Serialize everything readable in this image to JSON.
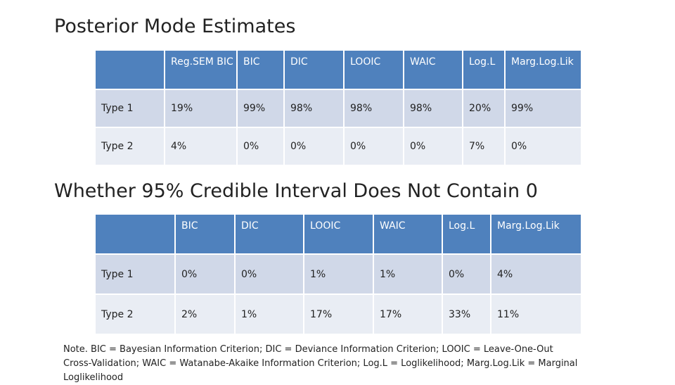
{
  "titles": {
    "table1": "Posterior Mode Estimates",
    "table2": "Whether 95% Credible Interval Does Not Contain 0"
  },
  "table1": {
    "headers": [
      "",
      "Reg.SEM BIC",
      "BIC",
      "DIC",
      "LOOIC",
      "WAIC",
      "Log.L",
      "Marg.Log.Lik"
    ],
    "rows": [
      [
        "Type 1",
        "19%",
        "99%",
        "98%",
        "98%",
        "98%",
        "20%",
        "99%"
      ],
      [
        "Type 2",
        "4%",
        "0%",
        "0%",
        "0%",
        "0%",
        "7%",
        "0%"
      ]
    ]
  },
  "table2": {
    "headers": [
      "",
      "BIC",
      "DIC",
      "LOOIC",
      "WAIC",
      "Log.L",
      "Marg.Log.Lik"
    ],
    "rows": [
      [
        "Type 1",
        "0%",
        "0%",
        "1%",
        "1%",
        "0%",
        "4%"
      ],
      [
        "Type 2",
        "2%",
        "1%",
        "17%",
        "17%",
        "33%",
        "11%"
      ]
    ]
  },
  "note": "Note. BIC = Bayesian Information Criterion; DIC = Deviance Information Criterion; LOOIC = Leave-One-Out Cross-Validation; WAIC = Watanabe-Akaike Information Criterion; Log.L = Loglikelihood; Marg.Log.Lik = Marginal Loglikelihood",
  "colors": {
    "header_fill": "#4f81bd",
    "row_odd_fill": "#d0d8e8",
    "row_even_fill": "#e9edf4"
  }
}
